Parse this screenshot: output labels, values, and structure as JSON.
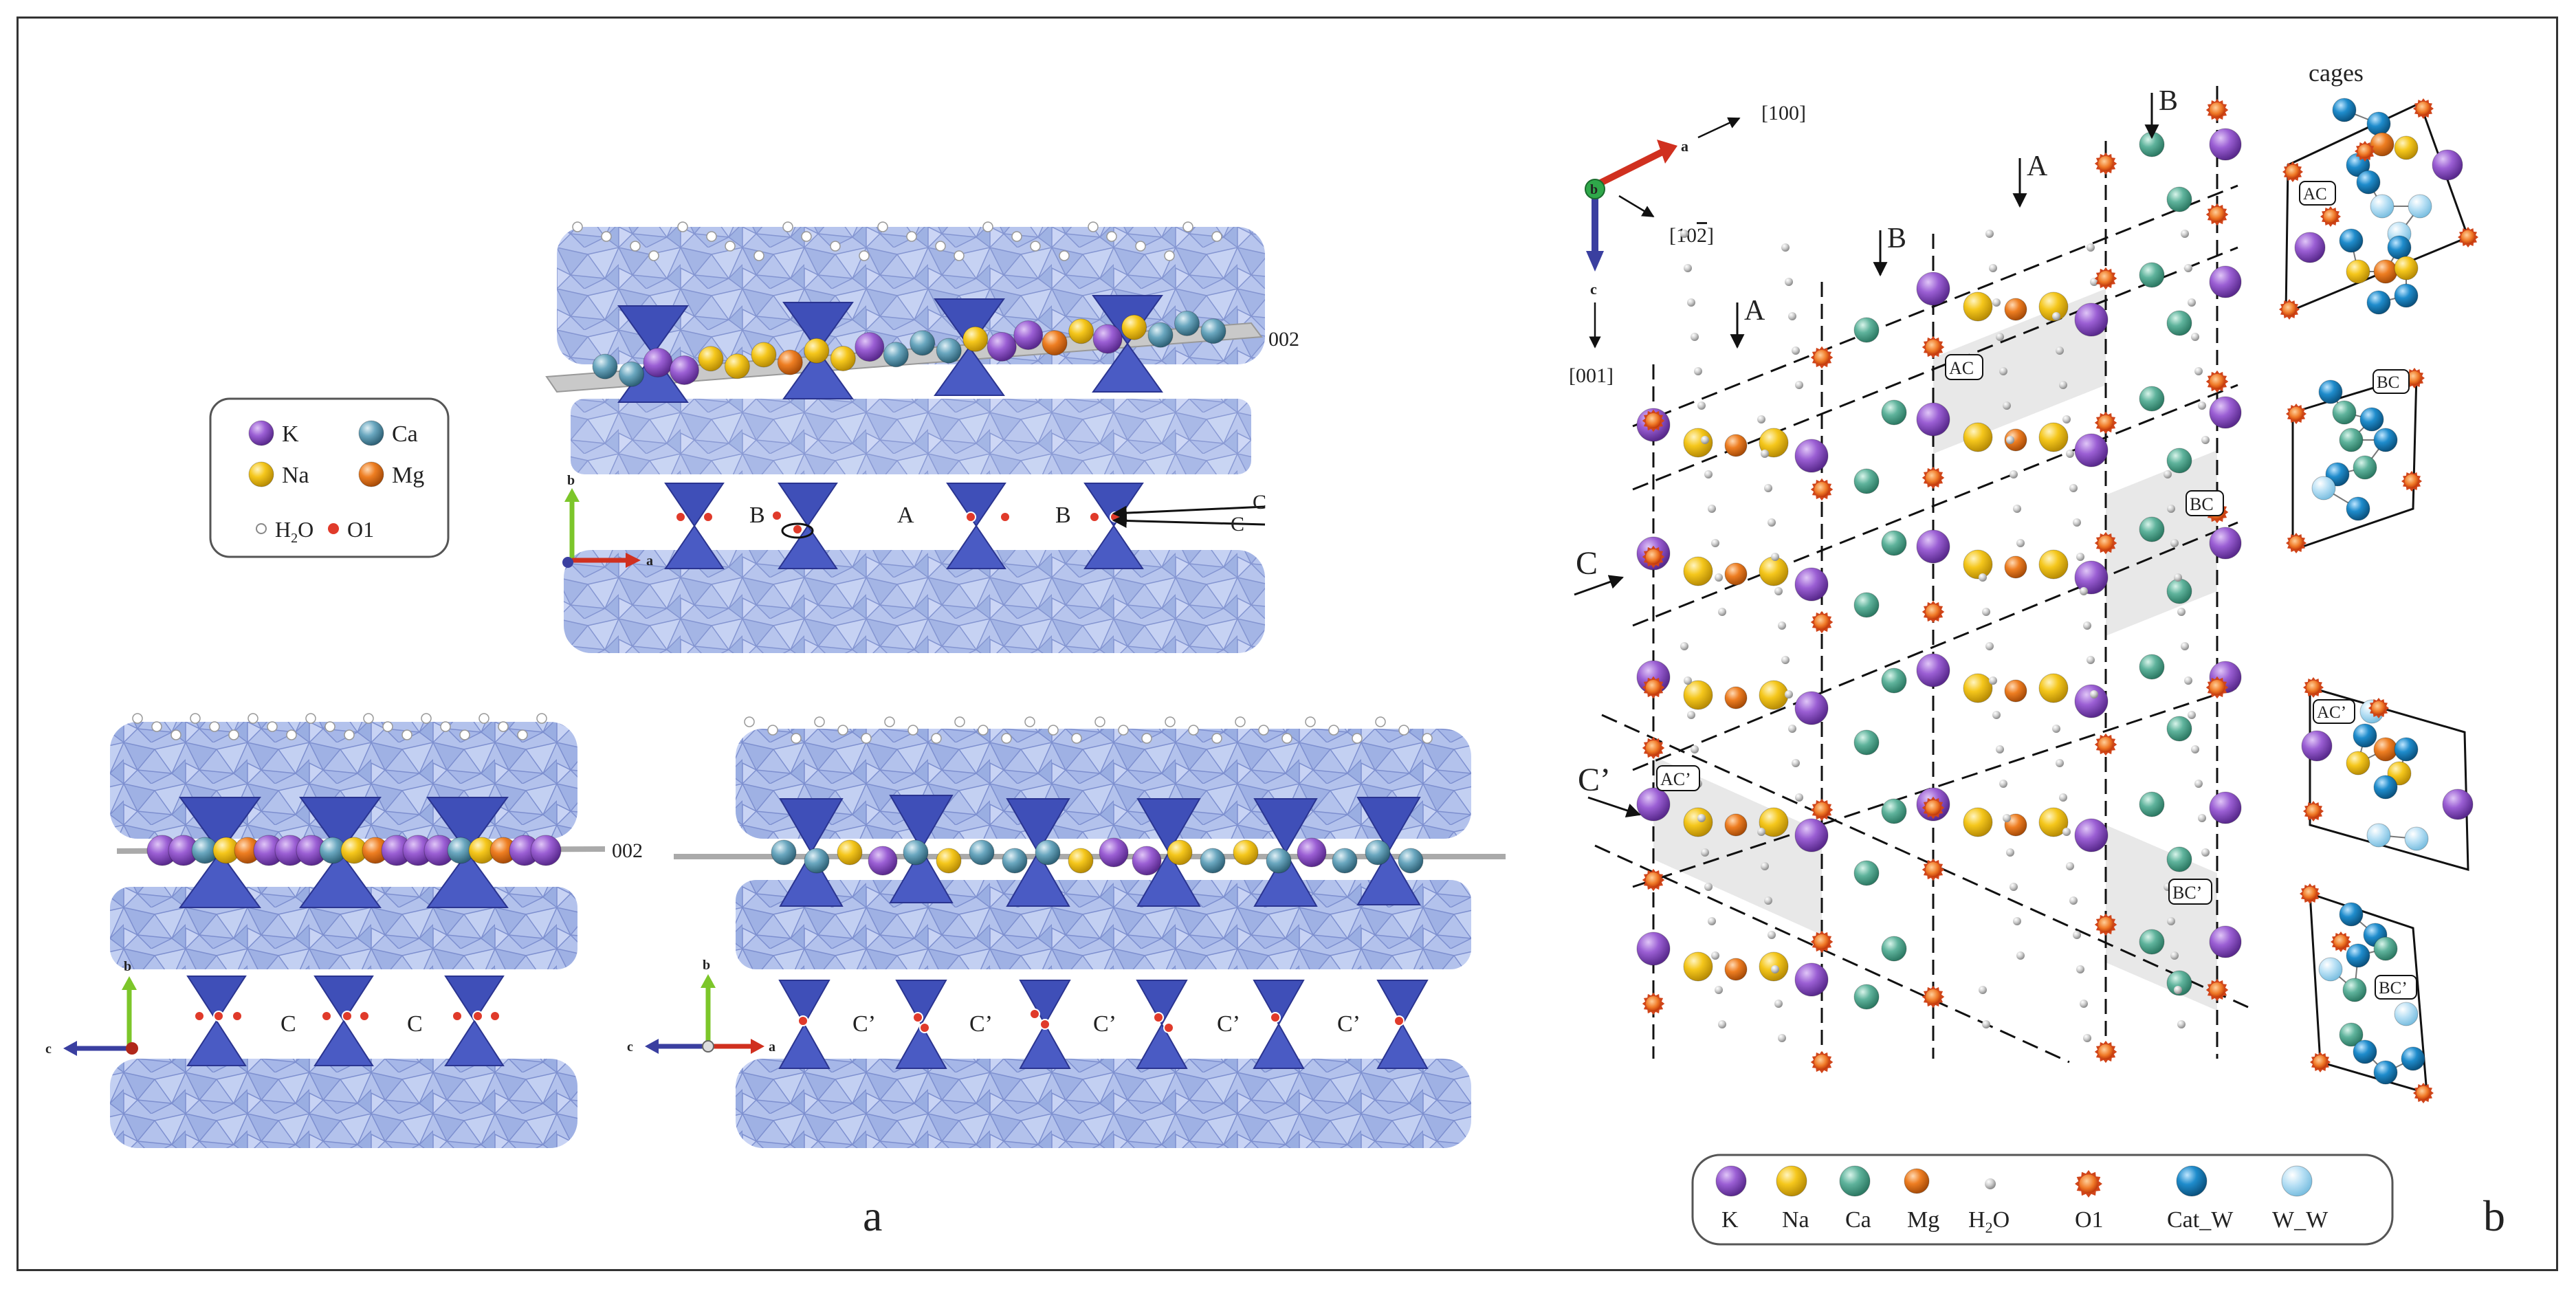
{
  "figure": {
    "panel_a_label": "a",
    "panel_b_label": "b",
    "cages_title": "cages"
  },
  "legend_a": {
    "items": [
      {
        "label": "K",
        "color": "#8e54c9"
      },
      {
        "label": "Ca",
        "color": "#5f9cb5"
      },
      {
        "label": "Na",
        "color": "#f2c31a"
      },
      {
        "label": "Mg",
        "color": "#e2701b"
      },
      {
        "label": "H2O",
        "text_main": "H",
        "text_sub": "2",
        "text_tail": "O",
        "color": "#bbbbbb"
      },
      {
        "label": "O1",
        "color": "#d92a1c"
      }
    ]
  },
  "legend_b": {
    "items": [
      {
        "label": "K",
        "color": "#8e54c9"
      },
      {
        "label": "Na",
        "color": "#f7c91c"
      },
      {
        "label": "Ca",
        "color": "#5fb39c"
      },
      {
        "label": "Mg",
        "color": "#f08a2a"
      },
      {
        "label": "H2O",
        "text_main": "H",
        "text_sub": "2",
        "text_tail": "O",
        "color": "#c8c8c8"
      },
      {
        "label": "O1",
        "color": "#e05a1c"
      },
      {
        "label": "Cat_W",
        "color": "#1f8ccc"
      },
      {
        "label": "W_W",
        "color": "#a8d8f0"
      }
    ]
  },
  "struct_top": {
    "plane_label": "002",
    "channel_labels": [
      "B",
      "A",
      "B"
    ],
    "arrow_labels": [
      "C",
      "C"
    ],
    "axis_labels": [
      "b",
      "a"
    ]
  },
  "struct_bl": {
    "plane_label": "002",
    "channel_labels": [
      "C",
      "C"
    ],
    "axis_labels": [
      "b",
      "c"
    ]
  },
  "struct_br": {
    "channel_labels": [
      "C’",
      "C’",
      "C’",
      "C’",
      "C’"
    ],
    "axis_labels": [
      "b",
      "c",
      "a"
    ]
  },
  "panel_b": {
    "axes": {
      "a": "a",
      "b": "b",
      "c": "c",
      "dir_100": "[100]",
      "dir_102_main": "[10",
      "dir_102_bar": "2",
      "dir_102_close": "]",
      "dir_001": "[001]"
    },
    "column_arrows": [
      "A",
      "B",
      "A",
      "B"
    ],
    "row_arrows": [
      "C",
      "C’"
    ],
    "cell_labels": [
      "AC",
      "BC",
      "AC’",
      "BC’"
    ],
    "cage_labels": [
      "AC",
      "BC",
      "AC’",
      "BC’"
    ]
  }
}
